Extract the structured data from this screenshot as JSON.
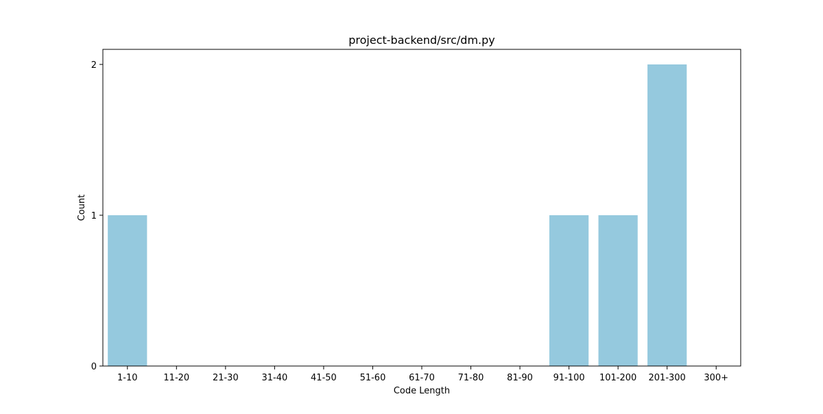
{
  "chart_data": {
    "type": "bar",
    "title": "project-backend/src/dm.py",
    "xlabel": "Code Length",
    "ylabel": "Count",
    "categories": [
      "1-10",
      "11-20",
      "21-30",
      "31-40",
      "41-50",
      "51-60",
      "61-70",
      "71-80",
      "81-90",
      "91-100",
      "101-200",
      "201-300",
      "300+"
    ],
    "values": [
      1,
      0,
      0,
      0,
      0,
      0,
      0,
      0,
      0,
      1,
      1,
      2,
      0
    ],
    "yticks": [
      0,
      1,
      2
    ],
    "ylim": [
      0,
      2.1
    ],
    "grid": false,
    "legend": "none",
    "colors": {
      "bar": "#95c9de",
      "axis": "#000000"
    }
  }
}
